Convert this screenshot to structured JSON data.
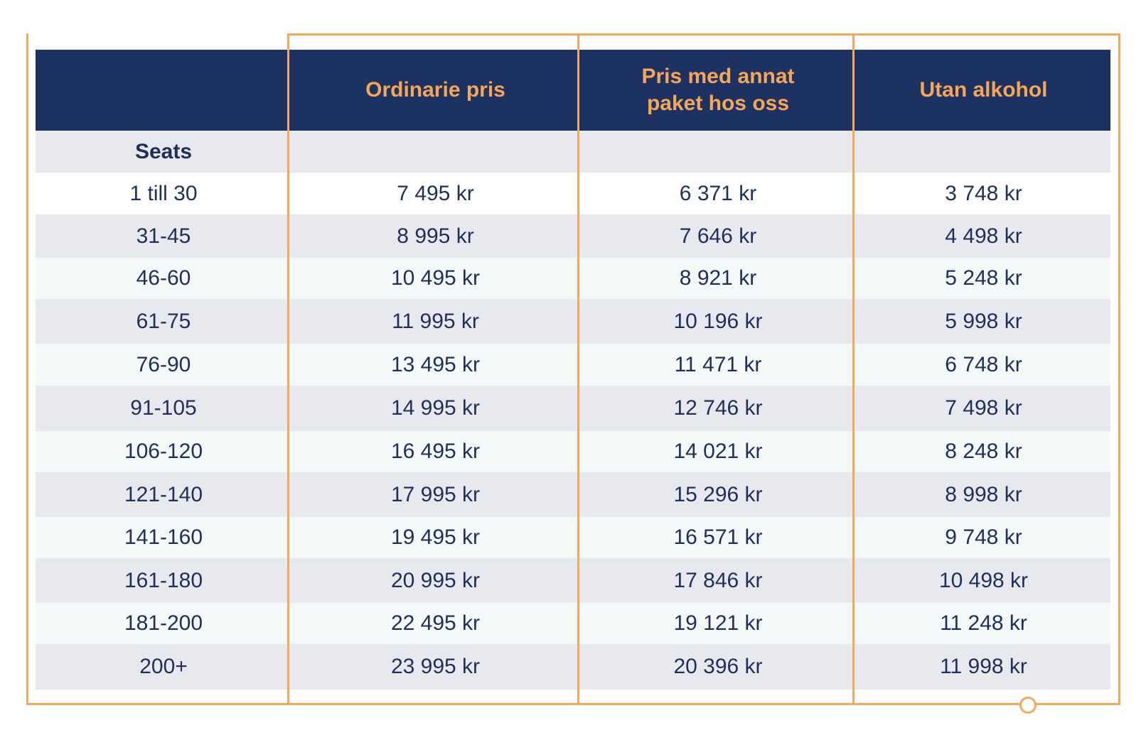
{
  "header": {
    "col1": "Ordinarie pris",
    "col2": "Pris med annat paket hos oss",
    "col3": "Utan alkohol"
  },
  "subheader": {
    "seats_label": "Seats"
  },
  "rows": [
    {
      "seats": "1 till 30",
      "ordinarie": "7 495 kr",
      "annat": "6 371 kr",
      "utan": "3 748 kr"
    },
    {
      "seats": "31-45",
      "ordinarie": "8 995 kr",
      "annat": "7 646 kr",
      "utan": "4 498 kr"
    },
    {
      "seats": "46-60",
      "ordinarie": "10 495 kr",
      "annat": "8 921 kr",
      "utan": "5 248 kr"
    },
    {
      "seats": "61-75",
      "ordinarie": "11 995 kr",
      "annat": "10 196 kr",
      "utan": "5 998 kr"
    },
    {
      "seats": "76-90",
      "ordinarie": "13 495 kr",
      "annat": "11 471 kr",
      "utan": "6 748 kr"
    },
    {
      "seats": "91-105",
      "ordinarie": "14 995 kr",
      "annat": "12 746 kr",
      "utan": "7 498 kr"
    },
    {
      "seats": "106-120",
      "ordinarie": "16 495 kr",
      "annat": "14 021 kr",
      "utan": "8 248 kr"
    },
    {
      "seats": "121-140",
      "ordinarie": "17 995 kr",
      "annat": "15 296 kr",
      "utan": "8 998 kr"
    },
    {
      "seats": "141-160",
      "ordinarie": "19 495 kr",
      "annat": "16 571 kr",
      "utan": "9 748 kr"
    },
    {
      "seats": "161-180",
      "ordinarie": "20 995 kr",
      "annat": "17 846 kr",
      "utan": "10 498 kr"
    },
    {
      "seats": "181-200",
      "ordinarie": "22 495 kr",
      "annat": "19 121 kr",
      "utan": "11 248 kr"
    },
    {
      "seats": "200+",
      "ordinarie": "23 995 kr",
      "annat": "20 396 kr",
      "utan": "11 998 kr"
    }
  ],
  "colors": {
    "header_bg": "#1d3260",
    "header_text": "#f4a65a",
    "frame": "#f4a85c",
    "text": "#1e2f5a",
    "row_gray": "#e7e9ef",
    "row_light": "#f3f8f9",
    "row_white": "#ffffff"
  }
}
